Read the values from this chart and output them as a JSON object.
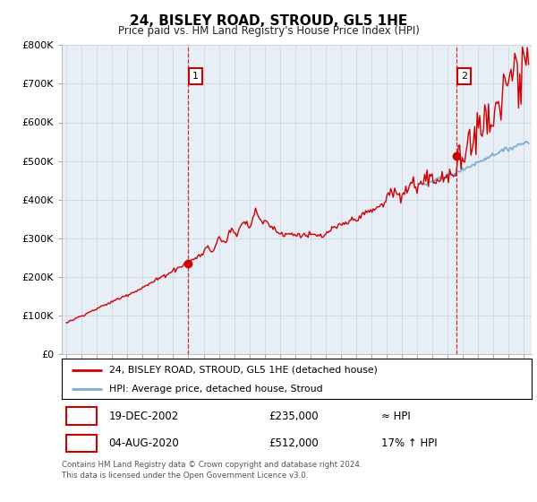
{
  "title": "24, BISLEY ROAD, STROUD, GL5 1HE",
  "subtitle": "Price paid vs. HM Land Registry's House Price Index (HPI)",
  "ylim": [
    0,
    800000
  ],
  "yticks": [
    0,
    100000,
    200000,
    300000,
    400000,
    500000,
    600000,
    700000,
    800000
  ],
  "ytick_labels": [
    "£0",
    "£100K",
    "£200K",
    "£300K",
    "£400K",
    "£500K",
    "£600K",
    "£700K",
    "£800K"
  ],
  "xlim_start": 1994.7,
  "xlim_end": 2025.5,
  "point1_year": 2002.96,
  "point1_price": 235000,
  "point1_label": "1",
  "point2_year": 2020.59,
  "point2_price": 512000,
  "point2_label": "2",
  "legend_line1": "24, BISLEY ROAD, STROUD, GL5 1HE (detached house)",
  "legend_line2": "HPI: Average price, detached house, Stroud",
  "table_row1_label": "1",
  "table_row1_date": "19-DEC-2002",
  "table_row1_price": "£235,000",
  "table_row1_hpi": "≈ HPI",
  "table_row2_label": "2",
  "table_row2_date": "04-AUG-2020",
  "table_row2_price": "£512,000",
  "table_row2_hpi": "17% ↑ HPI",
  "footer": "Contains HM Land Registry data © Crown copyright and database right 2024.\nThis data is licensed under the Open Government Licence v3.0.",
  "property_color": "#cc0000",
  "hpi_color": "#7bafd4",
  "chart_bg": "#e8eef5",
  "background_color": "#ffffff",
  "grid_color": "#c8d0dc"
}
